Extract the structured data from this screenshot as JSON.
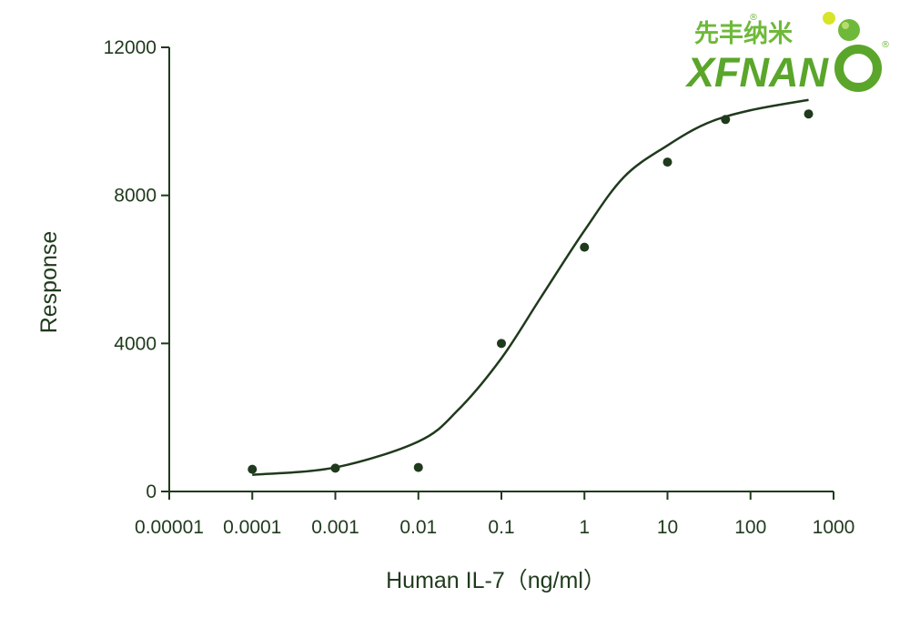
{
  "logo": {
    "name_cn": "先丰纳米",
    "name_en": "XFNAN",
    "registered": "®",
    "brand_green": "#5aa62a",
    "accent_yellow": "#d8e428"
  },
  "chart_data": {
    "type": "scatter",
    "xlabel": "Human IL-7（ng/ml）",
    "ylabel": "Response",
    "xscale": "log",
    "xlim": [
      1e-05,
      1000
    ],
    "ylim": [
      0,
      12000
    ],
    "x_ticks": [
      "0.00001",
      "0.0001",
      "0.001",
      "0.01",
      "0.1",
      "1",
      "10",
      "100",
      "1000"
    ],
    "x_tick_values": [
      1e-05,
      0.0001,
      0.001,
      0.01,
      0.1,
      1,
      10,
      100,
      1000
    ],
    "y_ticks": [
      "0",
      "4000",
      "8000",
      "12000"
    ],
    "y_tick_values": [
      0,
      4000,
      8000,
      12000
    ],
    "grid": false,
    "color": "#1f3a1c",
    "points": [
      {
        "x": 0.0001,
        "y": 600
      },
      {
        "x": 0.001,
        "y": 630
      },
      {
        "x": 0.01,
        "y": 650
      },
      {
        "x": 0.1,
        "y": 4000
      },
      {
        "x": 1,
        "y": 6600
      },
      {
        "x": 10,
        "y": 8900
      },
      {
        "x": 50,
        "y": 10050
      },
      {
        "x": 500,
        "y": 10200
      }
    ],
    "fit_curve": [
      {
        "x": 0.0001,
        "y": 450
      },
      {
        "x": 0.001,
        "y": 650
      },
      {
        "x": 0.01,
        "y": 1350
      },
      {
        "x": 0.03,
        "y": 2200
      },
      {
        "x": 0.1,
        "y": 3600
      },
      {
        "x": 0.3,
        "y": 5250
      },
      {
        "x": 1,
        "y": 7050
      },
      {
        "x": 3,
        "y": 8500
      },
      {
        "x": 10,
        "y": 9350
      },
      {
        "x": 30,
        "y": 9950
      },
      {
        "x": 100,
        "y": 10300
      },
      {
        "x": 500,
        "y": 10580
      }
    ]
  }
}
